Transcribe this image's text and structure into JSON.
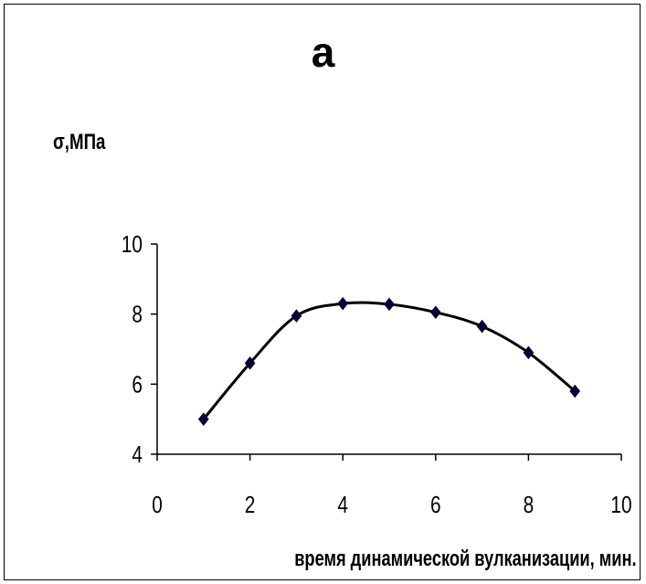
{
  "chart_data": {
    "type": "line",
    "title": "а",
    "ylabel": "σ,МПа",
    "xlabel": "время динамической вулканизации, мин.",
    "xlim": [
      0,
      10
    ],
    "ylim": [
      4,
      10
    ],
    "x_ticks": [
      0,
      2,
      4,
      6,
      8,
      10
    ],
    "y_ticks": [
      4,
      6,
      8,
      10
    ],
    "grid": false,
    "series": [
      {
        "x": [
          1,
          2,
          3,
          4,
          5,
          6,
          7,
          8,
          9
        ],
        "y": [
          5.0,
          6.6,
          7.95,
          8.3,
          8.28,
          8.05,
          7.65,
          6.9,
          5.8
        ],
        "color": "#000033",
        "marker": "diamond",
        "smooth": true
      }
    ]
  }
}
